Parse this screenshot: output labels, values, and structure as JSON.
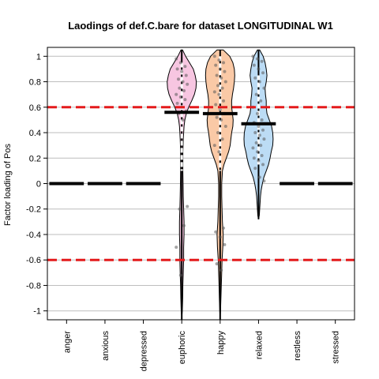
{
  "chart_data": {
    "type": "violin",
    "title": "Laodings of def.C.bare for dataset LONGITUDINAL W1",
    "xlabel": "",
    "ylabel": "Factor loading of Pos",
    "categories": [
      "anger",
      "anxious",
      "depressed",
      "euphoric",
      "happy",
      "relaxed",
      "restless",
      "stressed"
    ],
    "ylim": [
      -1.07,
      1.07
    ],
    "yticks": [
      -1,
      -0.8,
      -0.6,
      -0.4,
      -0.2,
      0,
      0.2,
      0.4,
      0.6,
      0.8,
      1
    ],
    "ytick_labels": [
      "-1",
      "-0.8",
      "-0.6",
      "-0.4",
      "-0.2",
      "0",
      "0.2",
      "0.4",
      "0.6",
      "0.8",
      "1"
    ],
    "grid": true,
    "thresholds": [
      0.6,
      -0.6
    ],
    "threshold_color": "#e41a1c",
    "medians": [
      0,
      0,
      0,
      0.56,
      0.55,
      0.47,
      0,
      0
    ],
    "violins": [
      {
        "category": "euphoric",
        "color": "#f7c6e1",
        "y": [
          1.05,
          1.0,
          0.95,
          0.9,
          0.85,
          0.8,
          0.75,
          0.7,
          0.65,
          0.6,
          0.55,
          0.5,
          0.45,
          0.4,
          0.35,
          0.3,
          0.25,
          0.2,
          0.1,
          0.0,
          -0.1,
          -0.2,
          -0.3,
          -0.4,
          -0.5,
          -0.6,
          -0.7,
          -0.8,
          -0.9,
          -1.0,
          -1.05
        ],
        "half_width": [
          0.02,
          0.1,
          0.2,
          0.3,
          0.35,
          0.38,
          0.37,
          0.33,
          0.26,
          0.18,
          0.12,
          0.08,
          0.06,
          0.05,
          0.04,
          0.035,
          0.03,
          0.03,
          0.03,
          0.035,
          0.04,
          0.05,
          0.06,
          0.06,
          0.05,
          0.05,
          0.04,
          0.03,
          0.025,
          0.015,
          0.0
        ],
        "whisker": [
          -1.07,
          1.05
        ],
        "iqr": [
          0.1,
          0.95
        ],
        "points": [
          0.98,
          0.95,
          0.92,
          0.9,
          0.88,
          0.85,
          0.82,
          0.8,
          0.78,
          0.75,
          0.73,
          0.7,
          0.68,
          0.66,
          0.63,
          0.6,
          0.57,
          0.55,
          0.5,
          -0.18,
          -0.2,
          -0.33,
          -0.5,
          -0.72
        ]
      },
      {
        "category": "happy",
        "color": "#fac9a6",
        "y": [
          1.05,
          1.0,
          0.95,
          0.9,
          0.85,
          0.8,
          0.75,
          0.7,
          0.65,
          0.6,
          0.55,
          0.5,
          0.45,
          0.4,
          0.35,
          0.3,
          0.25,
          0.2,
          0.15,
          0.1,
          0.0,
          -0.1,
          -0.2,
          -0.3,
          -0.4,
          -0.5,
          -0.6,
          -0.7,
          -0.8,
          -0.9,
          -1.0,
          -1.05
        ],
        "half_width": [
          0.08,
          0.25,
          0.33,
          0.37,
          0.38,
          0.37,
          0.35,
          0.32,
          0.3,
          0.3,
          0.32,
          0.34,
          0.33,
          0.3,
          0.28,
          0.26,
          0.22,
          0.16,
          0.1,
          0.06,
          0.04,
          0.04,
          0.05,
          0.06,
          0.08,
          0.07,
          0.05,
          0.04,
          0.03,
          0.02,
          0.01,
          0.0
        ],
        "whisker": [
          -1.07,
          1.05
        ],
        "iqr": [
          0.1,
          1.0
        ],
        "points": [
          1.0,
          0.97,
          0.95,
          0.93,
          0.9,
          0.88,
          0.85,
          0.83,
          0.8,
          0.77,
          0.75,
          0.72,
          0.7,
          0.65,
          0.62,
          0.58,
          0.55,
          0.52,
          0.5,
          0.45,
          0.4,
          0.35,
          0.3,
          0.25,
          -0.35,
          -0.38,
          -0.42,
          -0.48,
          -0.63,
          -0.68
        ]
      },
      {
        "category": "relaxed",
        "color": "#bcdcf5",
        "y": [
          1.05,
          1.0,
          0.95,
          0.9,
          0.85,
          0.8,
          0.75,
          0.7,
          0.65,
          0.6,
          0.55,
          0.5,
          0.45,
          0.4,
          0.35,
          0.3,
          0.25,
          0.2,
          0.15,
          0.1,
          0.05,
          0.0,
          -0.05,
          -0.1,
          -0.15,
          -0.2,
          -0.25,
          -0.28
        ],
        "half_width": [
          0.03,
          0.12,
          0.17,
          0.2,
          0.22,
          0.2,
          0.17,
          0.18,
          0.2,
          0.2,
          0.22,
          0.28,
          0.34,
          0.37,
          0.38,
          0.37,
          0.33,
          0.3,
          0.26,
          0.2,
          0.14,
          0.1,
          0.07,
          0.05,
          0.04,
          0.03,
          0.02,
          0.0
        ],
        "whisker": [
          -0.28,
          1.05
        ],
        "iqr": [
          0.15,
          0.85
        ],
        "points": [
          1.0,
          0.98,
          0.96,
          0.93,
          0.9,
          0.87,
          0.83,
          0.8,
          0.75,
          0.7,
          0.65,
          0.6,
          0.55,
          0.5,
          0.48,
          0.45,
          0.42,
          0.4,
          0.38,
          0.35,
          0.32,
          0.3,
          0.28,
          0.25,
          0.22,
          0.2,
          0.18,
          0.15,
          0.12,
          0.05,
          0.02
        ]
      }
    ]
  }
}
